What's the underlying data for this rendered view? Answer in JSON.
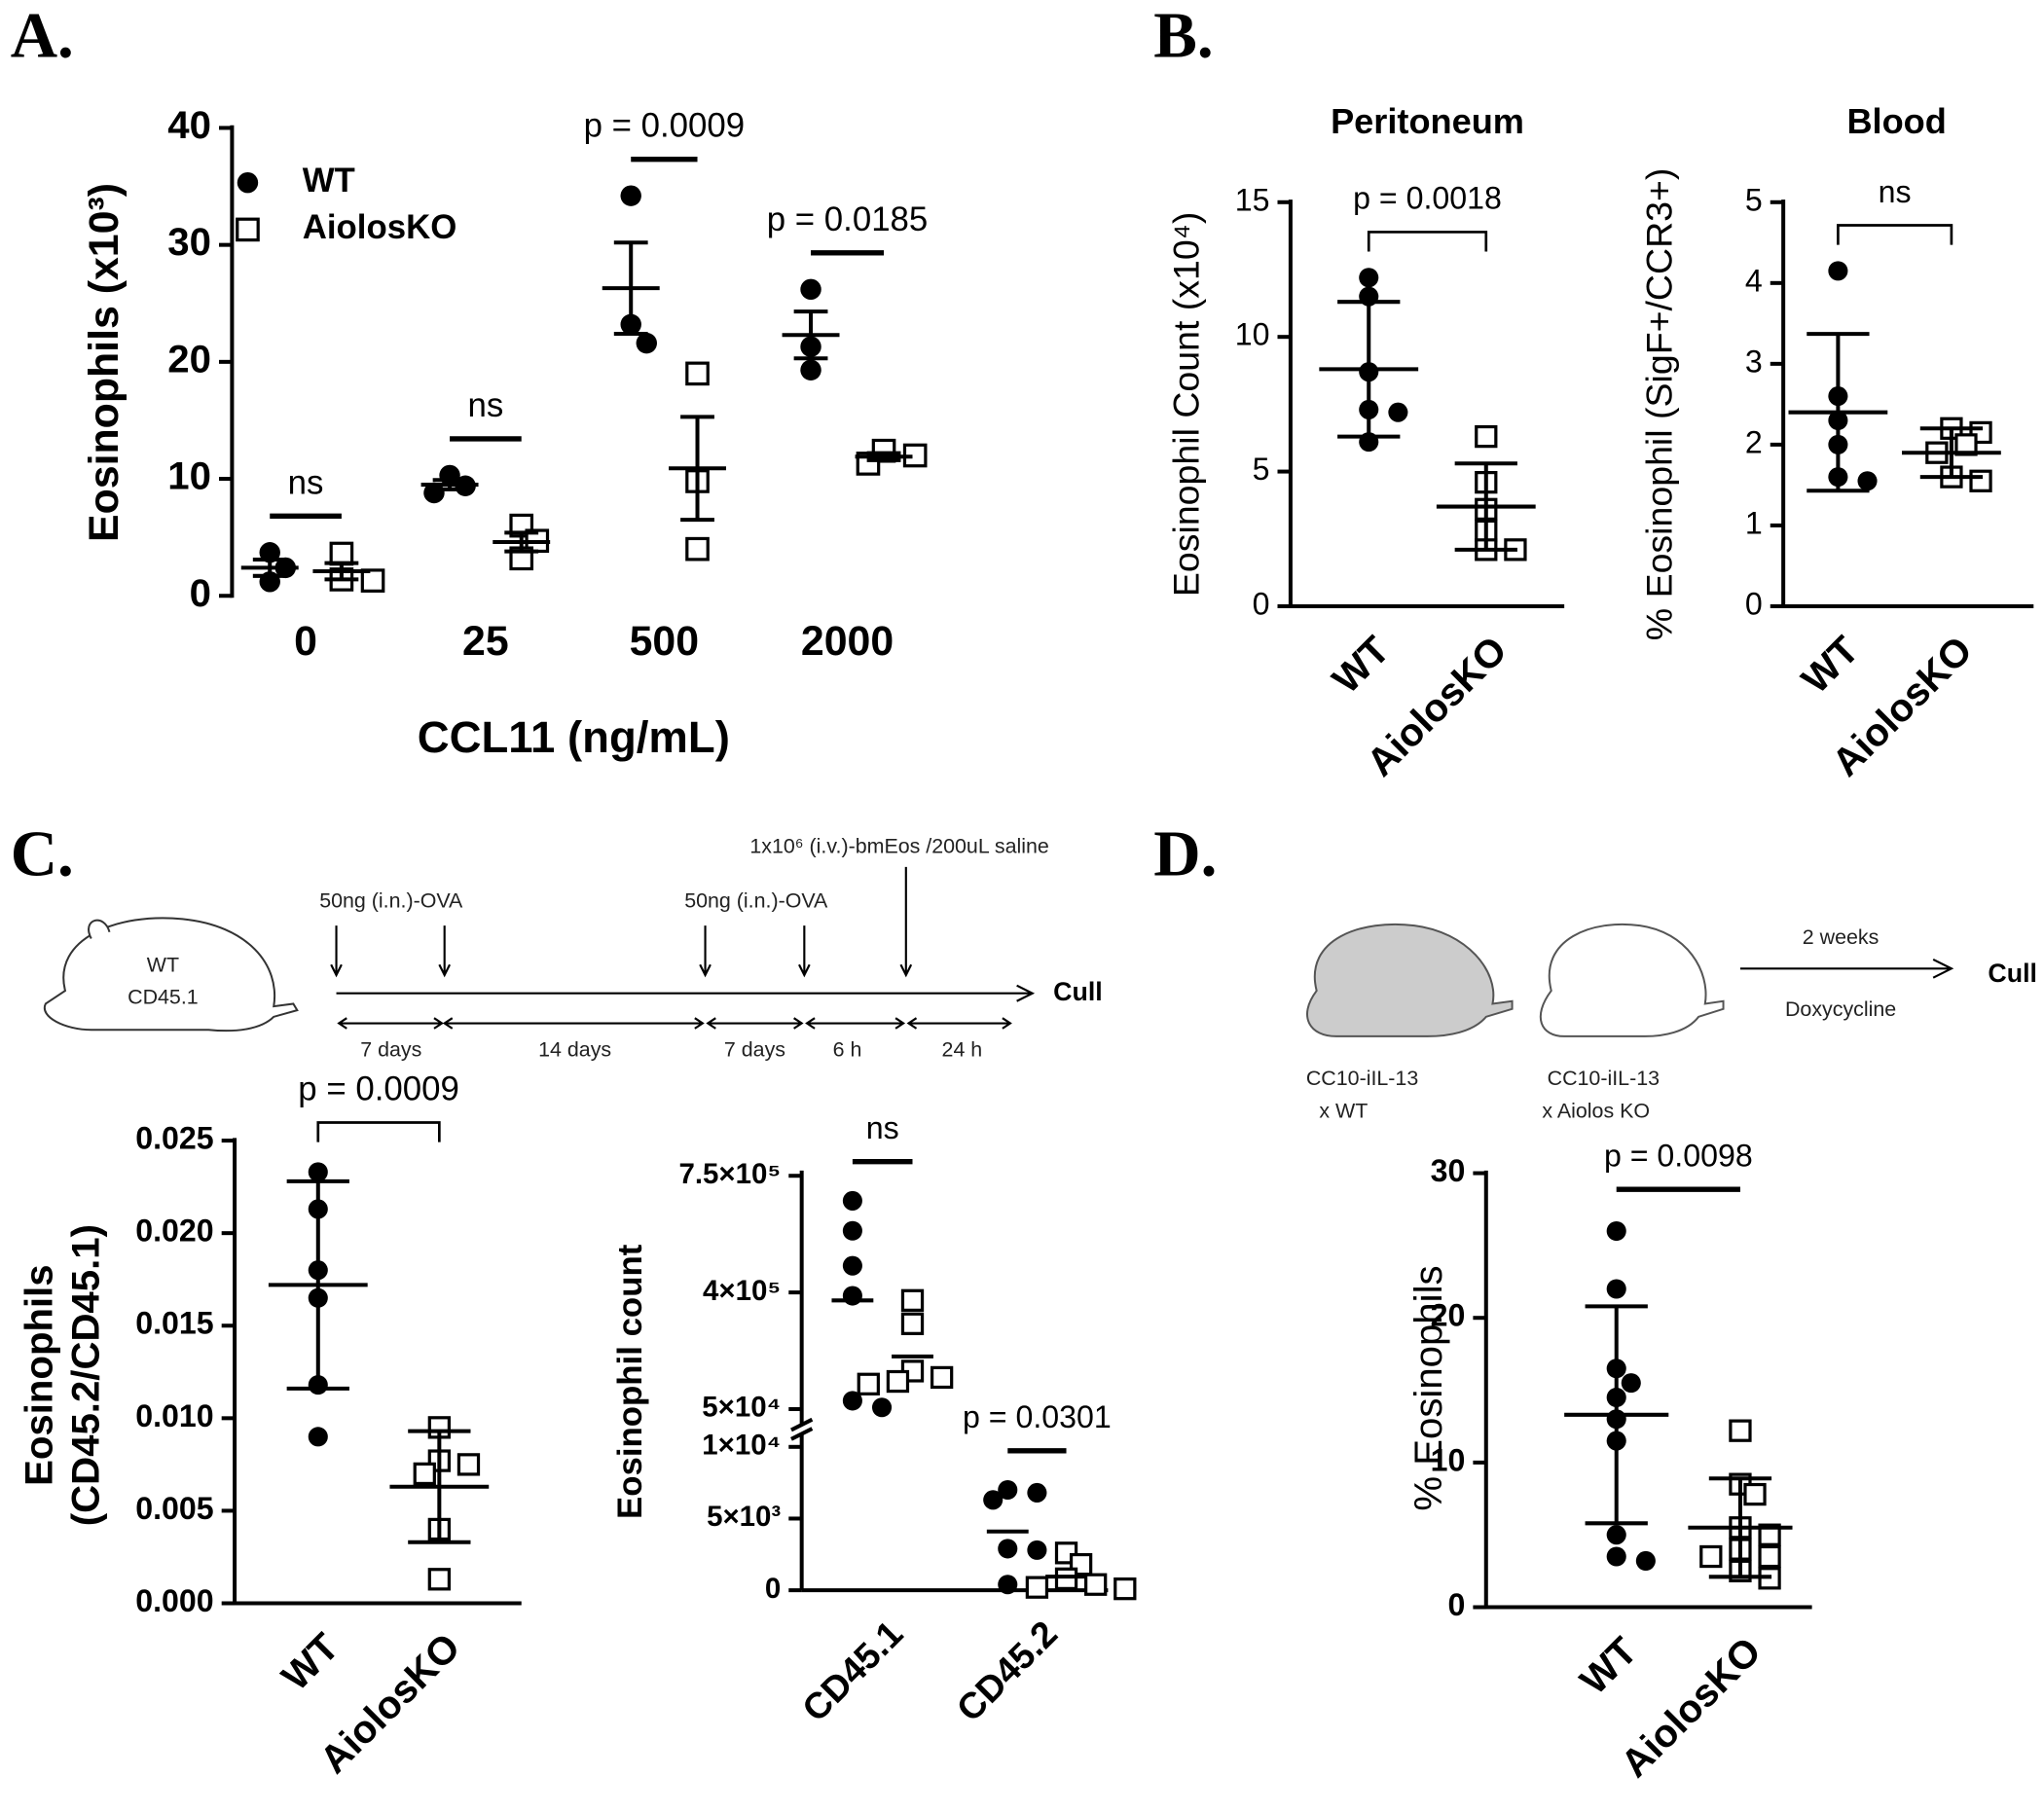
{
  "panel_labels": [
    "A.",
    "B.",
    "C.",
    "D."
  ],
  "panel_c": {
    "mouse": [
      "WT",
      "CD45.1"
    ],
    "treatments": [
      "50ng (i.n.)-OVA",
      "50ng (i.n.)-OVA",
      "1x10⁶ (i.v.)-bmEos /200uL saline"
    ],
    "intervals": [
      "7 days",
      "14 days",
      "7 days",
      "6 h",
      "24 h"
    ],
    "end": "Cull"
  },
  "panel_d": {
    "mice": [
      [
        "CC10-iIL-13",
        "x WT"
      ],
      [
        "CC10-iIL-13",
        "x Aiolos KO"
      ]
    ],
    "duration": "2 weeks",
    "treatment": "Doxycycline",
    "end": "Cull"
  },
  "chart_data": [
    {
      "type": "dot",
      "y_label": "Eosinophils (x10³)",
      "x_label": "CCL11 (ng/mL)",
      "categories": [
        "0",
        "25",
        "500",
        "2000"
      ],
      "series": [
        {
          "name": "WT",
          "marker": "circle",
          "color": "#000000",
          "values": [
            [
              3.7,
              2.4,
              1.2
            ],
            [
              10.3,
              9.4,
              8.8
            ],
            [
              34.2,
              23.2,
              21.6
            ],
            [
              26.2,
              21.3,
              19.3
            ]
          ],
          "means": [
            2.4,
            9.5,
            26.3,
            22.3
          ],
          "errors": [
            0.7,
            0.4,
            3.9,
            2.0
          ]
        },
        {
          "name": "AiolosKO",
          "marker": "square",
          "color": "#000000",
          "values": [
            [
              3.6,
              1.4,
              1.3
            ],
            [
              6.0,
              4.7,
              3.2
            ],
            [
              19.0,
              9.8,
              4.0
            ],
            [
              12.4,
              12.0,
              11.3
            ]
          ],
          "means": [
            2.1,
            4.6,
            10.9,
            11.9
          ],
          "errors": [
            0.7,
            0.8,
            4.4,
            0.3
          ]
        }
      ],
      "ylim": [
        0,
        40
      ],
      "yticks": [
        0,
        10,
        20,
        30,
        40
      ],
      "legend": "top-left",
      "comparisons": [
        {
          "label": "ns",
          "category": 0
        },
        {
          "label": "ns",
          "category": 1
        },
        {
          "label": "p = 0.0009",
          "category": 2
        },
        {
          "label": "p = 0.0185",
          "category": 3
        }
      ]
    },
    {
      "type": "dot",
      "title": "Peritoneum",
      "y_label": "Eosinophil Count (x10⁴)",
      "categories": [
        "WT",
        "AiolosKO"
      ],
      "markers": [
        "circle",
        "square"
      ],
      "color": "#000000",
      "values": [
        [
          12.2,
          11.5,
          8.7,
          7.3,
          7.2,
          6.1
        ],
        [
          6.3,
          4.6,
          3.6,
          2.8,
          2.1,
          2.1
        ]
      ],
      "means": [
        8.8,
        3.7
      ],
      "errors": [
        2.5,
        1.6
      ],
      "ylim": [
        0,
        15
      ],
      "yticks": [
        0,
        5,
        10,
        15
      ],
      "comparisons": [
        {
          "label": "p = 0.0018"
        }
      ]
    },
    {
      "type": "dot",
      "title": "Blood",
      "y_label": "% Eosinophil (SigF+/CCR3+)",
      "categories": [
        "WT",
        "AiolosKO"
      ],
      "markers": [
        "circle",
        "square"
      ],
      "color": "#000000",
      "values": [
        [
          4.15,
          2.6,
          2.3,
          2.0,
          1.6,
          1.55
        ],
        [
          2.2,
          2.15,
          2.0,
          1.9,
          1.6,
          1.55
        ]
      ],
      "means": [
        2.4,
        1.9
      ],
      "errors": [
        0.97,
        0.3
      ],
      "ylim": [
        0,
        5
      ],
      "yticks": [
        0,
        1,
        2,
        3,
        4,
        5
      ],
      "comparisons": [
        {
          "label": "ns"
        }
      ]
    },
    {
      "type": "dot",
      "y_label": [
        "Eosinophils",
        "(CD45.2/CD45.1)"
      ],
      "categories": [
        "WT",
        "AiolosKO"
      ],
      "markers": [
        "circle",
        "square"
      ],
      "color": "#000000",
      "values": [
        [
          0.0233,
          0.0213,
          0.018,
          0.0165,
          0.0118,
          0.009
        ],
        [
          0.0095,
          0.0077,
          0.0075,
          0.007,
          0.004,
          0.0013
        ]
      ],
      "means": [
        0.0172,
        0.0063
      ],
      "errors": [
        0.0056,
        0.003
      ],
      "ylim": [
        0,
        0.025
      ],
      "yticks": [
        {
          "value": 0,
          "label": "0.000"
        },
        {
          "value": 0.005,
          "label": "0.005"
        },
        {
          "value": 0.01,
          "label": "0.010"
        },
        {
          "value": 0.015,
          "label": "0.015"
        },
        {
          "value": 0.02,
          "label": "0.020"
        },
        {
          "value": 0.025,
          "label": "0.025"
        }
      ],
      "comparisons": [
        {
          "label": "p = 0.0009"
        }
      ]
    },
    {
      "type": "dot_broken",
      "y_label": "Eosinophil count",
      "categories": [
        "CD45.1",
        "CD45.2"
      ],
      "series": [
        {
          "name": "WT",
          "marker": "circle",
          "color": "#000000",
          "values": [
            [
              675000,
              585000,
              480000,
              390000,
              75000,
              55000
            ],
            [
              7000,
              6800,
              6300,
              2900,
              2800,
              400
            ]
          ],
          "means": [
            376000,
            4100
          ]
        },
        {
          "name": "AiolosKO",
          "marker": "square",
          "color": "#000000",
          "values": [
            [
              376000,
              306000,
              164000,
              145000,
              133000,
              125000
            ],
            [
              2600,
              1800,
              800,
              400,
              200,
              100
            ]
          ],
          "means": [
            208000,
            950
          ]
        }
      ],
      "ylim": [
        0,
        10000
      ],
      "yticks": [
        0,
        {
          "value": 5000,
          "label": "5×10³"
        },
        {
          "value": 10000,
          "label": "1×10⁴"
        }
      ],
      "ylim_top": [
        50000,
        750000
      ],
      "yticks_top": [
        {
          "value": 50000,
          "label": "5×10⁴"
        },
        {
          "value": 400000,
          "label": "4×10⁵"
        },
        {
          "value": 750000,
          "label": "7.5×10⁵"
        }
      ],
      "comparisons": [
        {
          "label": "ns",
          "category": 0
        },
        {
          "label": "p = 0.0301",
          "category": 1
        }
      ]
    },
    {
      "type": "dot",
      "y_label": "% Eosinophils",
      "categories": [
        "WT",
        "AiolosKO"
      ],
      "markers": [
        "circle",
        "square"
      ],
      "color": "#000000",
      "values": [
        [
          26,
          22,
          16.5,
          15.5,
          14.5,
          13,
          11.5,
          5,
          3.5,
          3.2
        ],
        [
          12.2,
          8.5,
          7.8,
          5.5,
          5,
          4,
          3.5,
          3.5,
          2.5,
          2
        ]
      ],
      "means": [
        13.3,
        5.5
      ],
      "errors": [
        7.5,
        3.4
      ],
      "ylim": [
        0,
        30
      ],
      "yticks": [
        0,
        10,
        20,
        30
      ],
      "comparisons": [
        {
          "label": "p = 0.0098"
        }
      ]
    }
  ]
}
